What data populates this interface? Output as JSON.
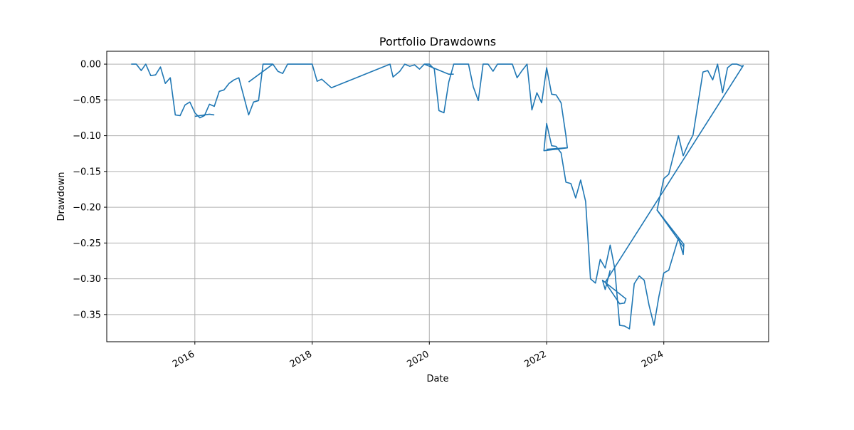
{
  "chart_data": {
    "type": "line",
    "title": "Portfolio Drawdowns",
    "xlabel": "Date",
    "ylabel": "Drawdown",
    "xlim": [
      "2014-07-01",
      "2025-10-15"
    ],
    "ylim": [
      -0.388,
      0.018
    ],
    "grid": true,
    "line_color": "#1f77b4",
    "x_ticks": [
      "2016-01-01",
      "2018-01-01",
      "2020-01-01",
      "2022-01-01",
      "2024-01-01"
    ],
    "x_tick_labels": [
      "2016",
      "2018",
      "2020",
      "2022",
      "2024"
    ],
    "y_ticks": [
      0.0,
      -0.05,
      -0.1,
      -0.15,
      -0.2,
      -0.25,
      -0.3,
      -0.35
    ],
    "y_tick_labels": [
      "0.00",
      "−0.05",
      "−0.10",
      "−0.15",
      "−0.20",
      "−0.25",
      "−0.30",
      "−0.35"
    ],
    "series": [
      {
        "points": [
          [
            "2014-11-30",
            0.0
          ],
          [
            "2015-01-01",
            0.0
          ],
          [
            "2015-02-01",
            -0.009
          ],
          [
            "2015-03-01",
            0.0
          ],
          [
            "2015-04-01",
            -0.016
          ],
          [
            "2015-05-01",
            -0.015
          ],
          [
            "2015-06-01",
            -0.004
          ],
          [
            "2015-07-01",
            -0.027
          ],
          [
            "2015-08-01",
            -0.019
          ],
          [
            "2015-09-01",
            -0.071
          ],
          [
            "2015-10-01",
            -0.072
          ],
          [
            "2015-11-01",
            -0.057
          ],
          [
            "2015-12-01",
            -0.053
          ],
          [
            "2016-01-01",
            -0.068
          ],
          [
            "2016-02-01",
            -0.075
          ],
          [
            "2016-03-01",
            -0.072
          ],
          [
            "2016-04-01",
            -0.056
          ],
          [
            "2016-05-01",
            -0.059
          ],
          [
            "2016-06-01",
            -0.038
          ],
          [
            "2016-07-01",
            -0.036
          ],
          [
            "2016-08-01",
            -0.027
          ],
          [
            "2016-09-01",
            -0.022
          ],
          [
            "2016-10-01",
            -0.019
          ],
          [
            "2016-12-01",
            -0.071
          ],
          [
            "2017-01-01",
            -0.053
          ],
          [
            "2017-02-01",
            -0.051
          ],
          [
            "2017-03-01",
            0.0
          ],
          [
            "2017-05-01",
            0.0
          ],
          [
            "2017-06-01",
            -0.01
          ],
          [
            "2017-07-01",
            -0.013
          ],
          [
            "2017-08-01",
            0.0
          ],
          [
            "2018-01-01",
            0.0
          ],
          [
            "2018-02-01",
            -0.024
          ],
          [
            "2018-03-01",
            -0.021
          ],
          [
            "2018-05-01",
            -0.033
          ],
          [
            "2019-05-01",
            0.0
          ],
          [
            "2019-05-20",
            -0.018
          ],
          [
            "2019-07-01",
            -0.01
          ],
          [
            "2019-08-01",
            0.0
          ],
          [
            "2019-09-01",
            -0.003
          ],
          [
            "2019-10-01",
            -0.001
          ],
          [
            "2019-11-01",
            -0.007
          ],
          [
            "2019-12-01",
            0.0
          ],
          [
            "2020-01-01",
            0.0
          ],
          [
            "2020-02-01",
            -0.007
          ],
          [
            "2020-03-01",
            -0.065
          ],
          [
            "2020-04-01",
            -0.068
          ],
          [
            "2020-05-01",
            -0.025
          ],
          [
            "2020-06-01",
            0.0
          ],
          [
            "2020-09-01",
            0.0
          ],
          [
            "2020-10-01",
            -0.032
          ],
          [
            "2020-11-01",
            -0.051
          ],
          [
            "2020-12-01",
            0.0
          ],
          [
            "2021-01-01",
            0.0
          ],
          [
            "2021-02-01",
            -0.01
          ],
          [
            "2021-03-01",
            0.0
          ],
          [
            "2021-06-01",
            0.0
          ],
          [
            "2021-07-01",
            -0.019
          ],
          [
            "2021-08-01",
            -0.009
          ],
          [
            "2021-09-01",
            0.0
          ],
          [
            "2021-10-01",
            -0.064
          ],
          [
            "2021-11-01",
            -0.04
          ],
          [
            "2021-12-01",
            -0.054
          ],
          [
            "2022-01-01",
            -0.005
          ],
          [
            "2022-02-01",
            -0.042
          ],
          [
            "2022-03-01",
            -0.043
          ],
          [
            "2022-04-01",
            -0.054
          ],
          [
            "2022-05-01",
            -0.1
          ],
          [
            "2022-05-10",
            -0.117
          ],
          [
            "2021-12-15",
            -0.121
          ],
          [
            "2022-01-01",
            -0.083
          ],
          [
            "2022-02-01",
            -0.114
          ],
          [
            "2022-03-01",
            -0.115
          ],
          [
            "2022-04-01",
            -0.124
          ],
          [
            "2022-05-01",
            -0.165
          ],
          [
            "2022-06-01",
            -0.167
          ],
          [
            "2022-07-01",
            -0.187
          ],
          [
            "2022-08-01",
            -0.162
          ],
          [
            "2022-09-01",
            -0.192
          ],
          [
            "2022-10-01",
            -0.3
          ],
          [
            "2022-11-01",
            -0.306
          ],
          [
            "2022-12-01",
            -0.273
          ],
          [
            "2023-01-01",
            -0.285
          ],
          [
            "2023-02-01",
            -0.253
          ],
          [
            "2023-03-01",
            -0.285
          ],
          [
            "2023-04-01",
            -0.365
          ],
          [
            "2023-05-01",
            -0.366
          ],
          [
            "2023-06-01",
            -0.37
          ],
          [
            "2023-07-01",
            -0.307
          ],
          [
            "2023-08-01",
            -0.296
          ],
          [
            "2023-09-01",
            -0.302
          ],
          [
            "2023-10-01",
            -0.337
          ],
          [
            "2023-11-01",
            -0.365
          ],
          [
            "2023-12-01",
            -0.325
          ],
          [
            "2024-01-01",
            -0.292
          ],
          [
            "2024-02-01",
            -0.288
          ],
          [
            "2024-04-01",
            -0.243
          ],
          [
            "2024-05-01",
            -0.266
          ],
          [
            "2024-05-05",
            -0.252
          ],
          [
            "2023-11-20",
            -0.204
          ],
          [
            "2024-01-01",
            -0.16
          ],
          [
            "2024-02-01",
            -0.154
          ],
          [
            "2024-04-01",
            -0.1
          ],
          [
            "2024-05-01",
            -0.128
          ],
          [
            "2024-06-01",
            -0.112
          ],
          [
            "2024-07-01",
            -0.099
          ],
          [
            "2024-09-01",
            -0.011
          ],
          [
            "2024-10-01",
            -0.009
          ],
          [
            "2024-11-01",
            -0.022
          ],
          [
            "2024-12-01",
            0.0
          ],
          [
            "2025-01-01",
            -0.04
          ],
          [
            "2025-02-01",
            -0.005
          ],
          [
            "2025-03-01",
            0.0
          ],
          [
            "2025-04-01",
            0.0
          ],
          [
            "2025-05-01",
            -0.003
          ],
          [
            "2025-05-10",
            -0.002
          ],
          [
            "2023-01-01",
            -0.305
          ],
          [
            "2023-04-01",
            -0.335
          ],
          [
            "2023-05-01",
            -0.334
          ],
          [
            "2023-05-10",
            -0.328
          ],
          [
            "2022-12-15",
            -0.302
          ],
          [
            "2023-01-01",
            -0.315
          ],
          [
            "2023-02-01",
            -0.288
          ]
        ]
      }
    ],
    "extra_segments": [
      [
        [
          "2016-01-01",
          -0.073
        ],
        [
          "2016-04-01",
          -0.07
        ],
        [
          "2016-05-01",
          -0.071
        ]
      ],
      [
        [
          "2016-12-01",
          -0.025
        ],
        [
          "2017-05-01",
          0.0
        ]
      ],
      [
        [
          "2019-12-01",
          0.0
        ],
        [
          "2020-05-01",
          -0.014
        ],
        [
          "2020-06-01",
          -0.014
        ]
      ],
      [
        [
          "2022-01-01",
          -0.119
        ],
        [
          "2022-05-01",
          -0.117
        ]
      ],
      [
        [
          "2023-11-20",
          -0.204
        ],
        [
          "2024-05-01",
          -0.255
        ]
      ]
    ]
  }
}
